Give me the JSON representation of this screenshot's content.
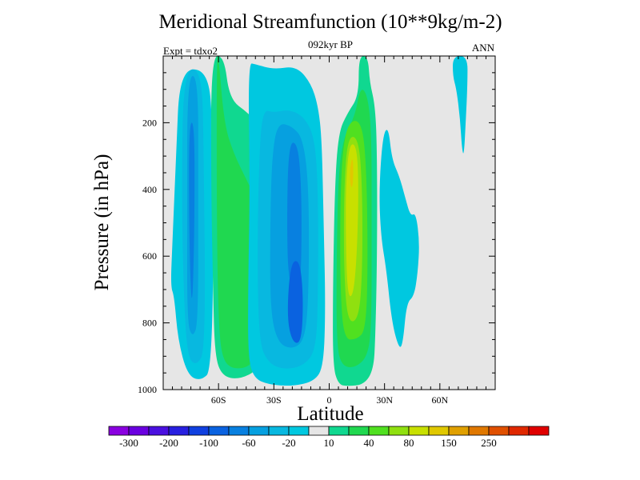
{
  "chart_data": {
    "type": "heatmap",
    "title": "Meridional Streamfunction (10**9kg/m-2)",
    "subtitle": "092kyr BP",
    "left_label": "Expt = tdxo2",
    "right_label": "ANN",
    "xlabel": "Latitude",
    "ylabel": "Pressure (in hPa)",
    "xlim": [
      -90,
      90
    ],
    "ylim": [
      1000,
      0
    ],
    "x_ticks": [
      -60,
      -30,
      0,
      30,
      60
    ],
    "x_tick_labels": [
      "60S",
      "30S",
      "0",
      "30N",
      "60N"
    ],
    "y_ticks": [
      200,
      400,
      600,
      800,
      1000
    ],
    "y_tick_labels": [
      "200",
      "400",
      "600",
      "800",
      "1000"
    ],
    "grid": false,
    "background_color": "#e6e6e6",
    "colorbar": {
      "levels": [
        -300,
        -250,
        -200,
        -150,
        -100,
        -80,
        -60,
        -40,
        -20,
        -10,
        10,
        20,
        40,
        60,
        80,
        100,
        150,
        200,
        250,
        300
      ],
      "labels": [
        "-300",
        "-200",
        "-100",
        "-60",
        "-20",
        "10",
        "40",
        "80",
        "150",
        "250"
      ],
      "colors": [
        "#8a00e0",
        "#6a00e0",
        "#4a10e0",
        "#2820e0",
        "#1040e0",
        "#0a62e0",
        "#0880e0",
        "#06a0e0",
        "#08b8e0",
        "#00c8e0",
        "#e6e6e6",
        "#10d890",
        "#20d850",
        "#50e020",
        "#90e010",
        "#c8e000",
        "#e0c800",
        "#e0a000",
        "#e07800",
        "#e05000",
        "#e02800",
        "#e00000"
      ]
    },
    "cells": [
      {
        "name": "southern-polar-cell",
        "sign": "negative",
        "lat_range": [
          -82,
          -63
        ],
        "p_range": [
          20,
          970
        ],
        "min": -100
      },
      {
        "name": "southern-ferrel-cell",
        "sign": "positive",
        "lat_range": [
          -63,
          -31
        ],
        "p_range": [
          0,
          970
        ],
        "max": 40
      },
      {
        "name": "southern-hadley-cell",
        "sign": "negative",
        "lat_range": [
          -44,
          -2
        ],
        "p_range": [
          20,
          990
        ],
        "min": -100
      },
      {
        "name": "northern-hadley-cell",
        "sign": "positive",
        "lat_range": [
          2,
          26
        ],
        "p_range": [
          0,
          990
        ],
        "max": 150
      },
      {
        "name": "northern-ferrel-cell",
        "sign": "negative",
        "lat_range": [
          26,
          50
        ],
        "p_range": [
          200,
          880
        ],
        "min": -20
      },
      {
        "name": "northern-polar-cell",
        "sign": "negative",
        "lat_range": [
          66,
          74
        ],
        "p_range": [
          0,
          320
        ],
        "min": -20
      }
    ]
  }
}
